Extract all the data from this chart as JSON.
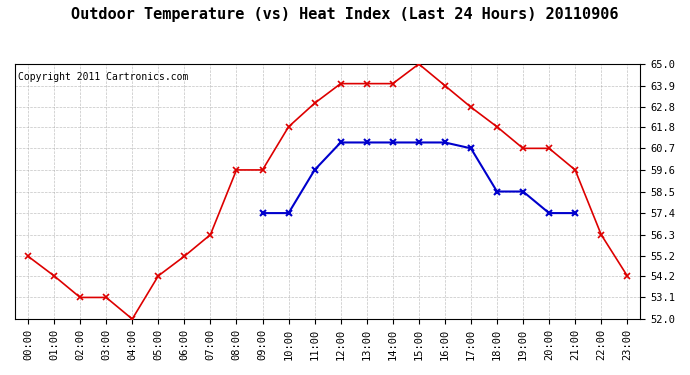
{
  "title": "Outdoor Temperature (vs) Heat Index (Last 24 Hours) 20110906",
  "copyright": "Copyright 2011 Cartronics.com",
  "x_labels": [
    "00:00",
    "01:00",
    "02:00",
    "03:00",
    "04:00",
    "05:00",
    "06:00",
    "07:00",
    "08:00",
    "09:00",
    "10:00",
    "11:00",
    "12:00",
    "13:00",
    "14:00",
    "15:00",
    "16:00",
    "17:00",
    "18:00",
    "19:00",
    "20:00",
    "21:00",
    "22:00",
    "23:00"
  ],
  "temp_red": [
    55.2,
    54.2,
    53.1,
    53.1,
    52.0,
    54.2,
    55.2,
    56.3,
    59.6,
    59.6,
    61.8,
    63.0,
    64.0,
    64.0,
    64.0,
    65.0,
    63.9,
    62.8,
    61.8,
    60.7,
    60.7,
    59.6,
    56.3,
    54.2
  ],
  "heat_blue": [
    null,
    null,
    null,
    null,
    null,
    null,
    null,
    null,
    null,
    57.4,
    57.4,
    59.6,
    61.0,
    61.0,
    61.0,
    61.0,
    61.0,
    60.7,
    58.5,
    58.5,
    57.4,
    57.4,
    null,
    null
  ],
  "ylim_min": 52.0,
  "ylim_max": 65.0,
  "yticks": [
    52.0,
    53.1,
    54.2,
    55.2,
    56.3,
    57.4,
    58.5,
    59.6,
    60.7,
    61.8,
    62.8,
    63.9,
    65.0
  ],
  "bg_color": "#ffffff",
  "plot_bg_color": "#ffffff",
  "grid_color": "#aaaaaa",
  "red_color": "#dd0000",
  "blue_color": "#0000cc",
  "title_fontsize": 11,
  "copyright_fontsize": 7,
  "tick_fontsize": 7.5
}
